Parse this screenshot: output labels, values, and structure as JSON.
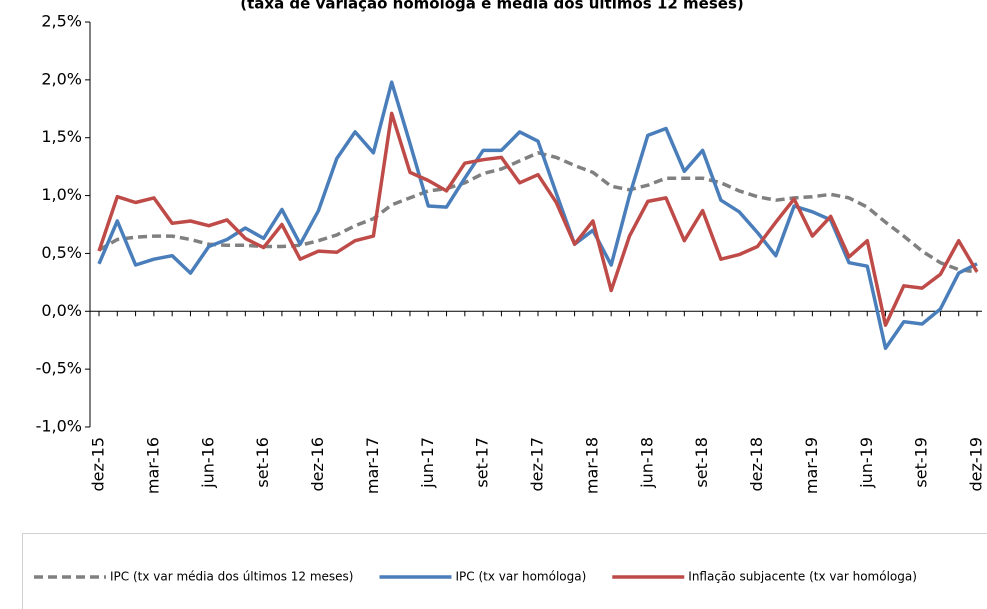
{
  "chart_data": {
    "type": "line",
    "title": "(taxa de variação homóloga e média dos últimos 12 meses)",
    "categories": [
      "dez-15",
      null,
      null,
      "mar-16",
      null,
      null,
      "jun-16",
      null,
      null,
      "set-16",
      null,
      null,
      "dez-16",
      null,
      null,
      "mar-17",
      null,
      null,
      "jun-17",
      null,
      null,
      "set-17",
      null,
      null,
      "dez-17",
      null,
      null,
      "mar-18",
      null,
      null,
      "jun-18",
      null,
      null,
      "set-18",
      null,
      null,
      "dez-18",
      null,
      null,
      "mar-19",
      null,
      null,
      "jun-19",
      null,
      null,
      "set-19",
      null,
      null,
      "dez-19"
    ],
    "series": [
      {
        "name": "IPC (tx var média dos últimos 12 meses)",
        "color": "#808080",
        "dash": true,
        "values": [
          0.53,
          0.62,
          0.64,
          0.65,
          0.65,
          0.62,
          0.58,
          0.57,
          0.57,
          0.56,
          0.56,
          0.57,
          0.61,
          0.66,
          0.74,
          0.8,
          0.92,
          0.98,
          1.04,
          1.06,
          1.11,
          1.19,
          1.23,
          1.3,
          1.37,
          1.33,
          1.26,
          1.2,
          1.08,
          1.05,
          1.09,
          1.15,
          1.15,
          1.15,
          1.11,
          1.04,
          0.99,
          0.96,
          0.98,
          0.99,
          1.01,
          0.98,
          0.9,
          0.77,
          0.65,
          0.52,
          0.42,
          0.36,
          0.34
        ]
      },
      {
        "name": "IPC (tx var homóloga)",
        "color": "#4a7ebb",
        "dash": false,
        "values": [
          0.41,
          0.78,
          0.4,
          0.45,
          0.48,
          0.33,
          0.56,
          0.62,
          0.72,
          0.63,
          0.88,
          0.58,
          0.87,
          1.32,
          1.55,
          1.37,
          1.98,
          1.45,
          0.91,
          0.9,
          1.15,
          1.39,
          1.39,
          1.55,
          1.47,
          1.02,
          0.58,
          0.7,
          0.4,
          1.0,
          1.52,
          1.58,
          1.21,
          1.39,
          0.96,
          0.86,
          0.68,
          0.48,
          0.91,
          0.86,
          0.79,
          0.42,
          0.39,
          -0.32,
          -0.09,
          -0.11,
          0.02,
          0.33,
          0.41
        ]
      },
      {
        "name": "Inflação subjacente (tx var homóloga)",
        "color": "#be4b48",
        "dash": false,
        "values": [
          0.52,
          0.99,
          0.94,
          0.98,
          0.76,
          0.78,
          0.74,
          0.79,
          0.63,
          0.55,
          0.75,
          0.45,
          0.52,
          0.51,
          0.61,
          0.65,
          1.71,
          1.2,
          1.13,
          1.04,
          1.28,
          1.31,
          1.33,
          1.11,
          1.18,
          0.94,
          0.58,
          0.78,
          0.18,
          0.65,
          0.95,
          0.98,
          0.61,
          0.87,
          0.45,
          0.49,
          0.56,
          0.77,
          0.97,
          0.65,
          0.82,
          0.47,
          0.61,
          -0.12,
          0.22,
          0.2,
          0.32,
          0.61,
          0.34
        ]
      }
    ],
    "ylim": [
      -1,
      2.5
    ],
    "yticks": [
      {
        "value": -1,
        "label": "-1,0%"
      },
      {
        "value": -0.5,
        "label": "-0,5%"
      },
      {
        "value": 0,
        "label": "0,0%"
      },
      {
        "value": 0.5,
        "label": "0,5%"
      },
      {
        "value": 1,
        "label": "1,0%"
      },
      {
        "value": 1.5,
        "label": "1,5%"
      },
      {
        "value": 2,
        "label": "2,0%"
      },
      {
        "value": 2.5,
        "label": "2,5%"
      }
    ],
    "grid": false,
    "legend": "bottom"
  }
}
